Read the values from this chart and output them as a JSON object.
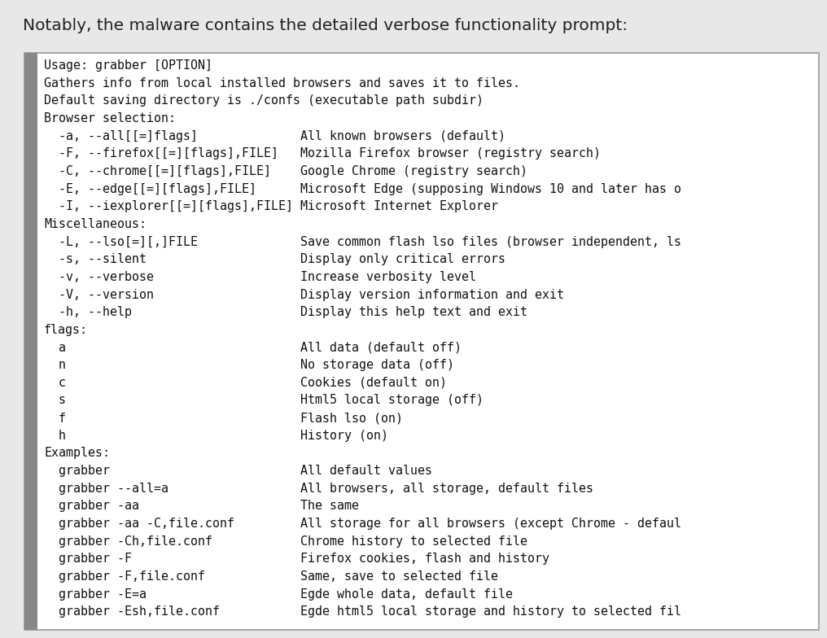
{
  "title": "Notably, the malware contains the detailed verbose functionality prompt:",
  "title_fontsize": 14.5,
  "title_color": "#222222",
  "bg_color": "#e8e8e8",
  "box_bg_color": "#ffffff",
  "box_border_color": "#999999",
  "left_bar_color": "#888888",
  "text_color": "#111111",
  "font_family": "monospace",
  "font_size": 10.8,
  "content": [
    "Usage: grabber [OPTION]",
    "Gathers info from local installed browsers and saves it to files.",
    "Default saving directory is ./confs (executable path subdir)",
    "Browser selection:",
    "  -a, --all[[=]flags]              All known browsers (default)",
    "  -F, --firefox[[=][flags],FILE]   Mozilla Firefox browser (registry search)",
    "  -C, --chrome[[=][flags],FILE]    Google Chrome (registry search)",
    "  -E, --edge[[=][flags],FILE]      Microsoft Edge (supposing Windows 10 and later has o",
    "  -I, --iexplorer[[=][flags],FILE] Microsoft Internet Explorer",
    "Miscellaneous:",
    "  -L, --lso[=][,]FILE              Save common flash lso files (browser independent, ls",
    "  -s, --silent                     Display only critical errors",
    "  -v, --verbose                    Increase verbosity level",
    "  -V, --version                    Display version information and exit",
    "  -h, --help                       Display this help text and exit",
    "flags:",
    "  a                                All data (default off)",
    "  n                                No storage data (off)",
    "  c                                Cookies (default on)",
    "  s                                Html5 local storage (off)",
    "  f                                Flash lso (on)",
    "  h                                History (on)",
    "Examples:",
    "  grabber                          All default values",
    "  grabber --all=a                  All browsers, all storage, default files",
    "  grabber -aa                      The same",
    "  grabber -aa -C,file.conf         All storage for all browsers (except Chrome - defaul",
    "  grabber -Ch,file.conf            Chrome history to selected file",
    "  grabber -F                       Firefox cookies, flash and history",
    "  grabber -F,file.conf             Same, save to selected file",
    "  grabber -E=a                     Egde whole data, default file",
    "  grabber -Esh,file.conf           Egde html5 local storage and history to selected fil"
  ],
  "fig_width": 10.16,
  "fig_height": 7.84,
  "dpi": 100
}
